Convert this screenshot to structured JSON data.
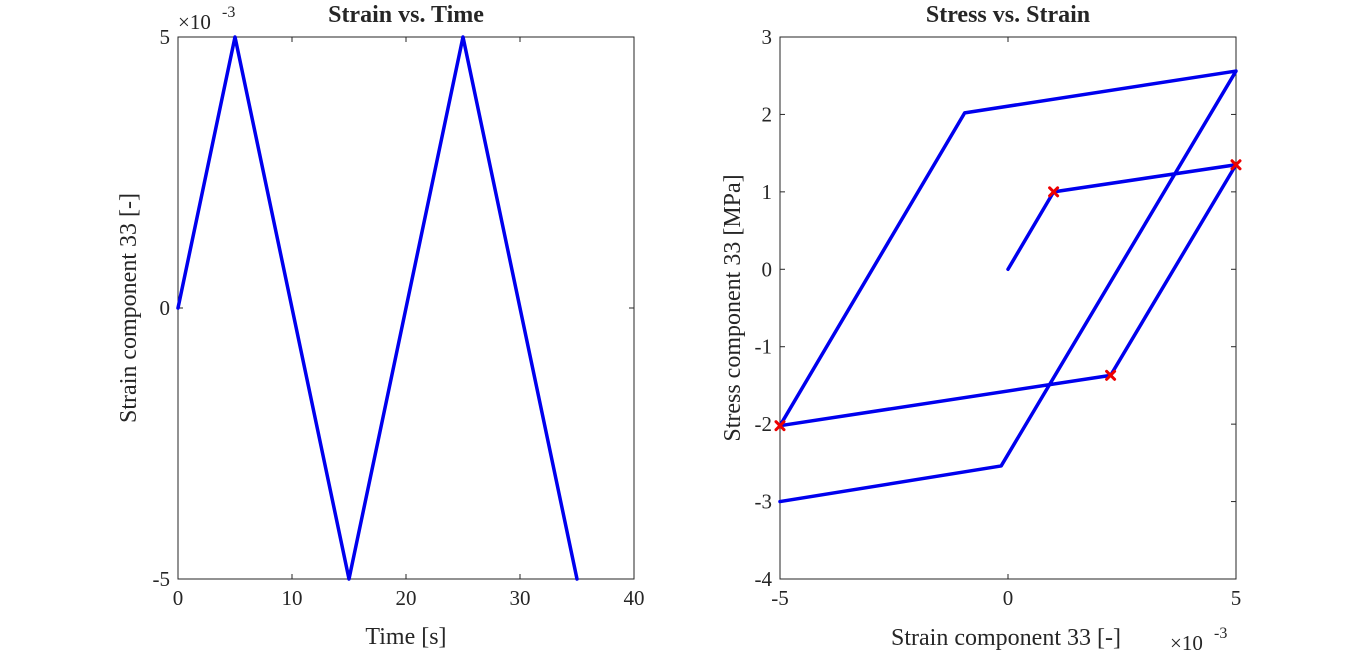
{
  "chart_data": [
    {
      "type": "line",
      "title": "Strain vs. Time",
      "xlabel": "Time [s]",
      "ylabel": "Strain component 33 [-]",
      "xlim": [
        0,
        40
      ],
      "ylim": [
        -0.005,
        0.005
      ],
      "xticks": [
        0,
        10,
        20,
        30,
        40
      ],
      "xtick_labels": [
        "0",
        "10",
        "20",
        "30",
        "40"
      ],
      "yticks": [
        -0.005,
        0,
        0.005
      ],
      "ytick_labels": [
        "-5",
        "0",
        "5"
      ],
      "y_exponent": {
        "base": "×10",
        "power": "-3"
      },
      "grid": false,
      "line_color": "#0000ee",
      "series": [
        {
          "x": [
            0,
            5,
            15,
            25,
            35
          ],
          "y": [
            0,
            0.005,
            -0.005,
            0.005,
            -0.005
          ]
        }
      ]
    },
    {
      "type": "line",
      "title": "Stress vs. Strain",
      "xlabel": "Strain component 33 [-]",
      "ylabel": "Stress component 33 [MPa]",
      "xlim": [
        -0.005,
        0.005
      ],
      "ylim": [
        -4,
        3
      ],
      "xticks": [
        -0.005,
        0,
        0.005
      ],
      "xtick_labels": [
        "-5",
        "0",
        "5"
      ],
      "yticks": [
        -4,
        -3,
        -2,
        -1,
        0,
        1,
        2,
        3
      ],
      "ytick_labels": [
        "-4",
        "-3",
        "-2",
        "-1",
        "0",
        "1",
        "2",
        "3"
      ],
      "x_exponent": {
        "base": "×10",
        "power": "-3"
      },
      "grid": false,
      "line_color": "#0000ee",
      "marker_color": "#ee0000",
      "series": [
        {
          "x": [
            0,
            0.001,
            0.005,
            0.00225,
            -0.005,
            -0.00095,
            0.005,
            -0.00015,
            -0.005
          ],
          "y": [
            0,
            1.0,
            1.35,
            -1.37,
            -2.02,
            2.02,
            2.56,
            -2.54,
            -3.0
          ]
        }
      ],
      "markers": {
        "x": [
          0.001,
          0.005,
          0.00225,
          -0.005
        ],
        "y": [
          1.0,
          1.35,
          -1.37,
          -2.02
        ]
      }
    }
  ]
}
